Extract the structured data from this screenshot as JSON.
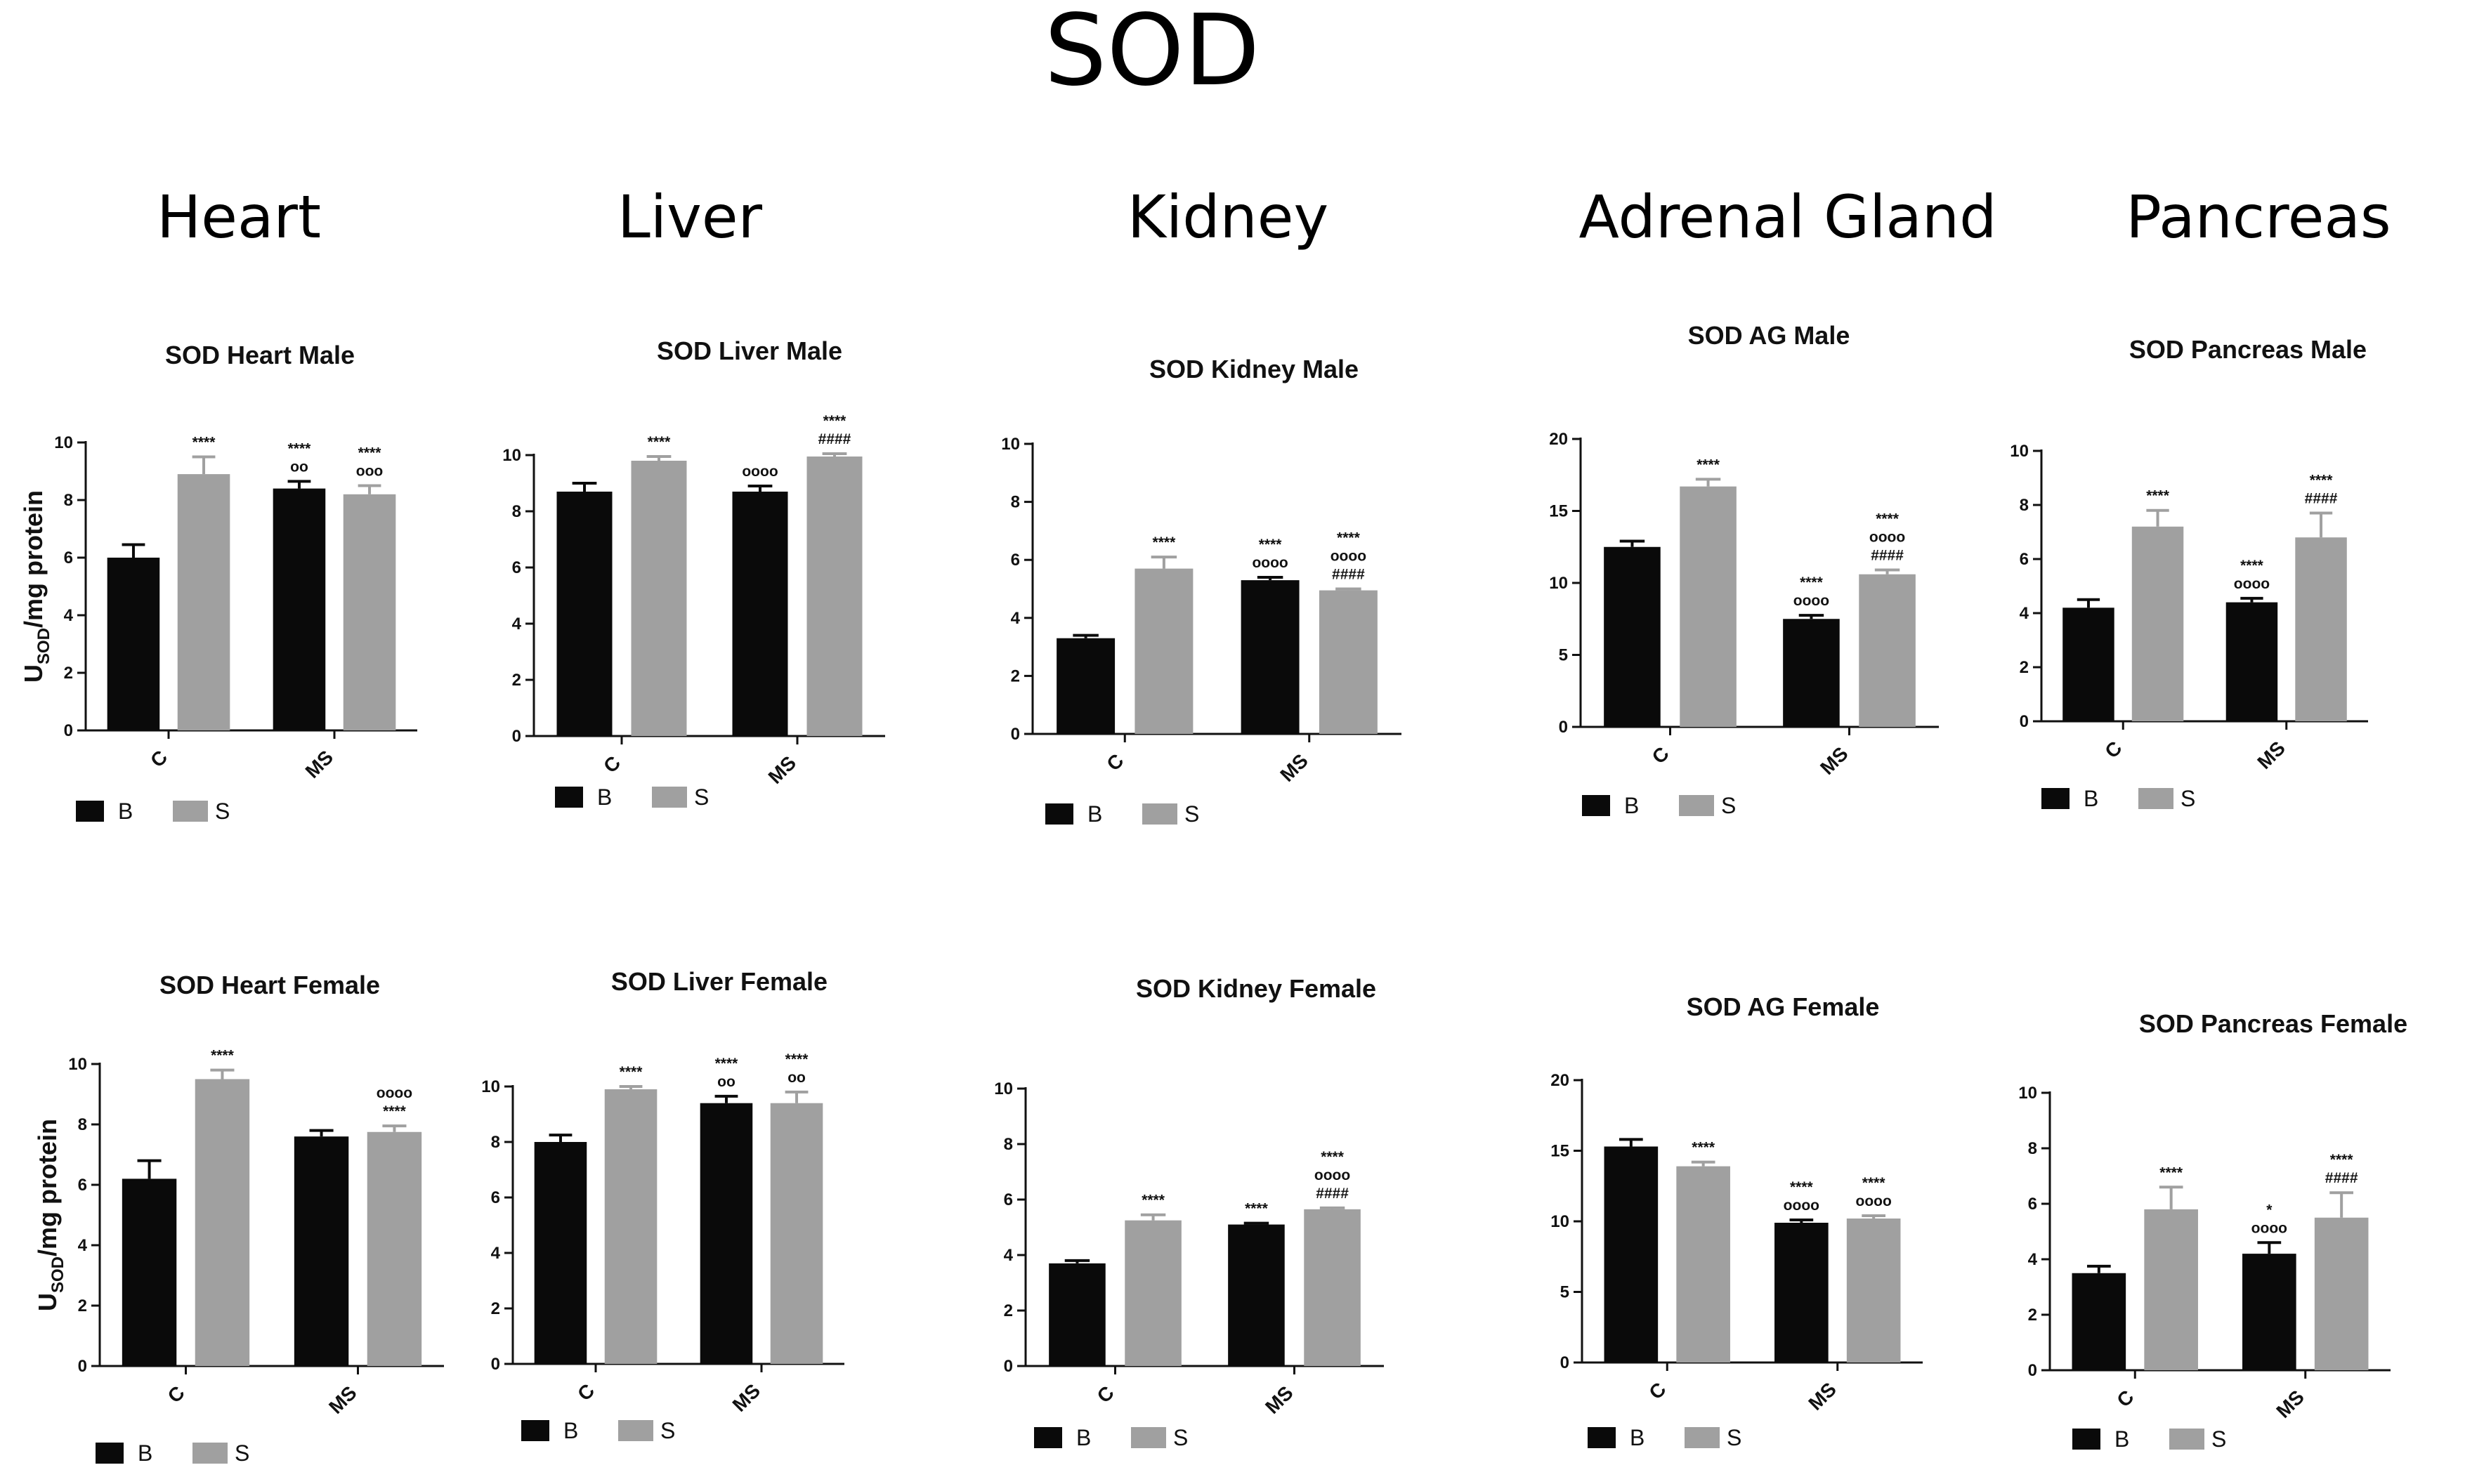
{
  "title": "SOD",
  "organs": [
    "Heart",
    "Liver",
    "Kidney",
    "Adrenal Gland",
    "Pancreas"
  ],
  "y_axis_label": {
    "main": "U",
    "sub": "SOD",
    "rest": "/mg protein"
  },
  "legend": {
    "b": "B",
    "s": "S"
  },
  "colors": {
    "b": "#0a0a0a",
    "s": "#a0a0a0"
  },
  "chart_data": [
    {
      "type": "bar",
      "title": "SOD Heart Male",
      "categories": [
        "C",
        "MS"
      ],
      "ylim": [
        0,
        10
      ],
      "yticks": [
        0,
        2,
        4,
        6,
        8,
        10
      ],
      "series": [
        {
          "name": "B",
          "values": [
            6.0,
            8.4
          ],
          "errors": [
            0.45,
            0.25
          ]
        },
        {
          "name": "S",
          "values": [
            8.9,
            8.2
          ],
          "errors": [
            0.6,
            0.3
          ]
        }
      ],
      "annotations": [
        [
          [],
          [
            "****",
            "oo"
          ]
        ],
        [
          [
            "****"
          ],
          [
            "****",
            "ooo"
          ]
        ]
      ]
    },
    {
      "type": "bar",
      "title": "SOD Liver Male",
      "categories": [
        "C",
        "MS"
      ],
      "ylim": [
        0,
        10
      ],
      "yticks": [
        0,
        2,
        4,
        6,
        8,
        10
      ],
      "series": [
        {
          "name": "B",
          "values": [
            8.7,
            8.7
          ],
          "errors": [
            0.3,
            0.2
          ]
        },
        {
          "name": "S",
          "values": [
            9.8,
            9.95
          ],
          "errors": [
            0.15,
            0.1
          ]
        }
      ],
      "annotations": [
        [
          [],
          [
            "oooo"
          ]
        ],
        [
          [
            "****"
          ],
          [
            "****",
            "####"
          ]
        ]
      ]
    },
    {
      "type": "bar",
      "title": "SOD Kidney Male",
      "categories": [
        "C",
        "MS"
      ],
      "ylim": [
        0,
        10
      ],
      "yticks": [
        0,
        2,
        4,
        6,
        8,
        10
      ],
      "series": [
        {
          "name": "B",
          "values": [
            3.3,
            5.3
          ],
          "errors": [
            0.1,
            0.1
          ]
        },
        {
          "name": "S",
          "values": [
            5.7,
            4.95
          ],
          "errors": [
            0.4,
            0.05
          ]
        }
      ],
      "annotations": [
        [
          [],
          [
            "****",
            "oooo"
          ]
        ],
        [
          [
            "****"
          ],
          [
            "****",
            "oooo",
            "####"
          ]
        ]
      ]
    },
    {
      "type": "bar",
      "title": "SOD AG Male",
      "categories": [
        "C",
        "MS"
      ],
      "ylim": [
        0,
        20
      ],
      "yticks": [
        0,
        5,
        10,
        15,
        20
      ],
      "series": [
        {
          "name": "B",
          "values": [
            12.5,
            7.5
          ],
          "errors": [
            0.4,
            0.25
          ]
        },
        {
          "name": "S",
          "values": [
            16.7,
            10.6
          ],
          "errors": [
            0.5,
            0.3
          ]
        }
      ],
      "annotations": [
        [
          [],
          [
            "****",
            "oooo"
          ]
        ],
        [
          [
            "****"
          ],
          [
            "****",
            "oooo",
            "####"
          ]
        ]
      ]
    },
    {
      "type": "bar",
      "title": "SOD Pancreas Male",
      "categories": [
        "C",
        "MS"
      ],
      "ylim": [
        0,
        10
      ],
      "yticks": [
        0,
        2,
        4,
        6,
        8,
        10
      ],
      "series": [
        {
          "name": "B",
          "values": [
            4.2,
            4.4
          ],
          "errors": [
            0.3,
            0.15
          ]
        },
        {
          "name": "S",
          "values": [
            7.2,
            6.8
          ],
          "errors": [
            0.6,
            0.9
          ]
        }
      ],
      "annotations": [
        [
          [],
          [
            "****",
            "oooo"
          ]
        ],
        [
          [
            "****"
          ],
          [
            "****",
            "####"
          ]
        ]
      ]
    },
    {
      "type": "bar",
      "title": "SOD Heart Female",
      "categories": [
        "C",
        "MS"
      ],
      "ylim": [
        0,
        10
      ],
      "yticks": [
        0,
        2,
        4,
        6,
        8,
        10
      ],
      "series": [
        {
          "name": "B",
          "values": [
            6.2,
            7.6
          ],
          "errors": [
            0.6,
            0.2
          ]
        },
        {
          "name": "S",
          "values": [
            9.5,
            7.75
          ],
          "errors": [
            0.3,
            0.2
          ]
        }
      ],
      "annotations": [
        [
          [],
          []
        ],
        [
          [
            "****"
          ],
          [
            "oooo",
            "****"
          ]
        ]
      ]
    },
    {
      "type": "bar",
      "title": "SOD Liver Female",
      "categories": [
        "C",
        "MS"
      ],
      "ylim": [
        0,
        10
      ],
      "yticks": [
        0,
        2,
        4,
        6,
        8,
        10
      ],
      "series": [
        {
          "name": "B",
          "values": [
            8.0,
            9.4
          ],
          "errors": [
            0.25,
            0.25
          ]
        },
        {
          "name": "S",
          "values": [
            9.9,
            9.4
          ],
          "errors": [
            0.1,
            0.4
          ]
        }
      ],
      "annotations": [
        [
          [],
          [
            "****",
            "oo"
          ]
        ],
        [
          [
            "****"
          ],
          [
            "****",
            "oo"
          ]
        ]
      ]
    },
    {
      "type": "bar",
      "title": "SOD Kidney Female",
      "categories": [
        "C",
        "MS"
      ],
      "ylim": [
        0,
        10
      ],
      "yticks": [
        0,
        2,
        4,
        6,
        8,
        10
      ],
      "series": [
        {
          "name": "B",
          "values": [
            3.7,
            5.1
          ],
          "errors": [
            0.1,
            0.05
          ]
        },
        {
          "name": "S",
          "values": [
            5.25,
            5.65
          ],
          "errors": [
            0.2,
            0.05
          ]
        }
      ],
      "annotations": [
        [
          [],
          [
            "****"
          ]
        ],
        [
          [
            "****"
          ],
          [
            "****",
            "oooo",
            "####"
          ]
        ]
      ]
    },
    {
      "type": "bar",
      "title": "SOD AG Female",
      "categories": [
        "C",
        "MS"
      ],
      "ylim": [
        0,
        20
      ],
      "yticks": [
        0,
        5,
        10,
        15,
        20
      ],
      "series": [
        {
          "name": "B",
          "values": [
            15.3,
            9.9
          ],
          "errors": [
            0.5,
            0.2
          ]
        },
        {
          "name": "S",
          "values": [
            13.9,
            10.2
          ],
          "errors": [
            0.3,
            0.2
          ]
        }
      ],
      "annotations": [
        [
          [],
          [
            "****",
            "oooo"
          ]
        ],
        [
          [
            "****"
          ],
          [
            "****",
            "oooo"
          ]
        ]
      ]
    },
    {
      "type": "bar",
      "title": "SOD Pancreas Female",
      "categories": [
        "C",
        "MS"
      ],
      "ylim": [
        0,
        10
      ],
      "yticks": [
        0,
        2,
        4,
        6,
        8,
        10
      ],
      "series": [
        {
          "name": "B",
          "values": [
            3.5,
            4.2
          ],
          "errors": [
            0.25,
            0.4
          ]
        },
        {
          "name": "S",
          "values": [
            5.8,
            5.5
          ],
          "errors": [
            0.8,
            0.9
          ]
        }
      ],
      "annotations": [
        [
          [],
          [
            "*",
            "oooo"
          ]
        ],
        [
          [
            "****"
          ],
          [
            "****",
            "####"
          ]
        ]
      ]
    }
  ]
}
